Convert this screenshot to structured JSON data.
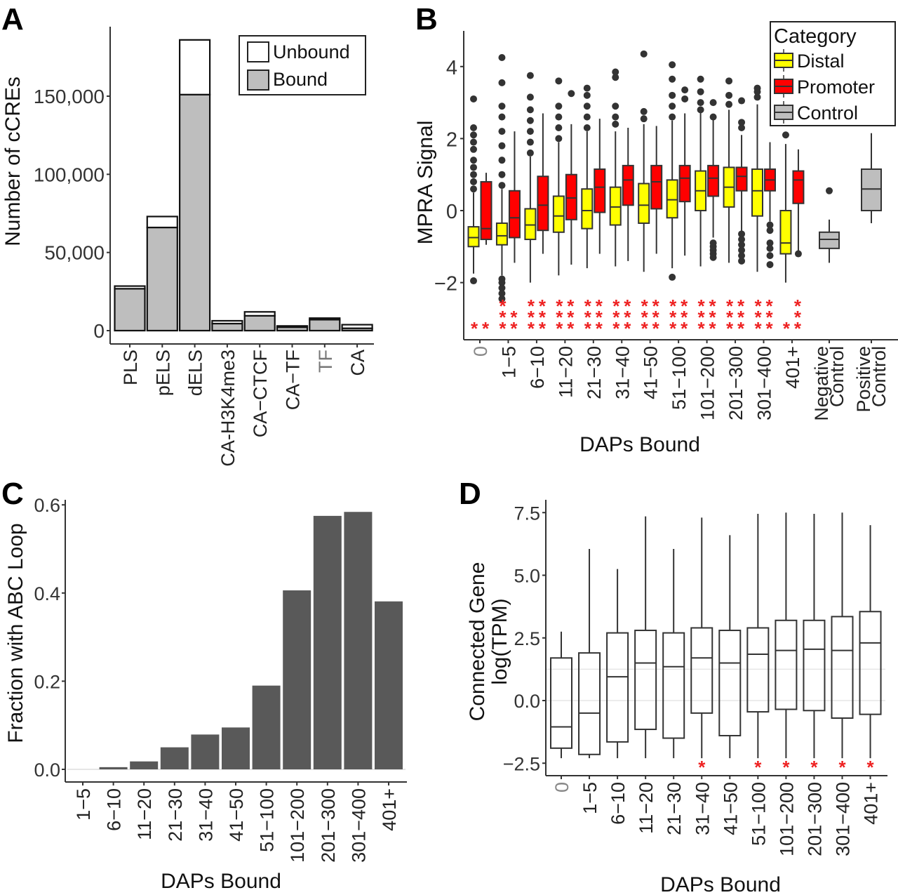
{
  "chart_data": [
    {
      "panel": "A",
      "type": "bar",
      "stacked": true,
      "panel_label": "A",
      "title": "",
      "xlabel": "",
      "ylabel": "Number of cCREs",
      "ylim": [
        0,
        190000
      ],
      "yticks": [
        0,
        50000,
        100000,
        150000
      ],
      "ytick_labels": [
        "0",
        "50,000",
        "100,000",
        "150,000"
      ],
      "categories": [
        "PLS",
        "pELS",
        "dELS",
        "CA-H3K4me3",
        "CA−CTCF",
        "CA−TF",
        "TF",
        "CA"
      ],
      "series": [
        {
          "name": "Bound",
          "color": "#bebebe",
          "values": [
            26800,
            66000,
            151000,
            4500,
            9500,
            2200,
            7000,
            1500
          ]
        },
        {
          "name": "Unbound",
          "color": "#ffffff",
          "values": [
            1700,
            7000,
            35000,
            1800,
            2500,
            800,
            1000,
            2300
          ]
        }
      ],
      "legend": {
        "position": "top-right",
        "entries": [
          "Unbound",
          "Bound"
        ]
      },
      "grid": false
    },
    {
      "panel": "B",
      "type": "box",
      "panel_label": "B",
      "xlabel": "DAPs Bound",
      "ylabel": "MPRA Signal",
      "ylim": [
        -3.4,
        5.0
      ],
      "yticks": [
        -2,
        0,
        2,
        4
      ],
      "ytick_labels": [
        "−2",
        "0",
        "2",
        "4"
      ],
      "categories": [
        "0",
        "1−5",
        "6−10",
        "11−20",
        "21−30",
        "31−40",
        "41−50",
        "51−100",
        "101−200",
        "201−300",
        "301−400",
        "401+",
        "Negative\nControl",
        "Positive\nControl"
      ],
      "legend": {
        "title": "Category",
        "position": "top-right",
        "entries": [
          {
            "name": "Distal",
            "color": "#ffff00"
          },
          {
            "name": "Promoter",
            "color": "#ff0000"
          },
          {
            "name": "Control",
            "color": "#bebebe"
          }
        ]
      },
      "series": [
        {
          "name": "Distal",
          "color": "#ffff00",
          "boxes": [
            {
              "cat": 0,
              "low": -1.75,
              "q1": -1.0,
              "median": -0.75,
              "q3": -0.45,
              "high": 0.5,
              "outliers_high": [
                0.6,
                0.8,
                1.0,
                1.2,
                1.4,
                1.7,
                1.9,
                2.1,
                2.3,
                3.1
              ],
              "outliers_low": [
                -1.95
              ]
            },
            {
              "cat": 1,
              "low": -1.8,
              "q1": -0.95,
              "median": -0.7,
              "q3": -0.35,
              "high": 0.6,
              "outliers_high": [
                0.7,
                1.0,
                1.4,
                1.8,
                2.2,
                2.6,
                2.9,
                3.55,
                4.25
              ],
              "outliers_low": [
                -1.9,
                -2.0,
                -2.15,
                -2.3,
                -2.45
              ]
            },
            {
              "cat": 2,
              "low": -2.0,
              "q1": -0.8,
              "median": -0.4,
              "q3": 0.05,
              "high": 1.5,
              "outliers_high": [
                1.6,
                1.9,
                2.2,
                2.5,
                2.8,
                3.15,
                3.75
              ],
              "outliers_low": []
            },
            {
              "cat": 3,
              "low": -1.8,
              "q1": -0.6,
              "median": -0.15,
              "q3": 0.4,
              "high": 1.9,
              "outliers_high": [
                2.0,
                2.3,
                2.6,
                2.9,
                3.6
              ],
              "outliers_low": []
            },
            {
              "cat": 4,
              "low": -1.6,
              "q1": -0.5,
              "median": 0.0,
              "q3": 0.6,
              "high": 2.2,
              "outliers_high": [
                2.3,
                2.6,
                2.9,
                3.2,
                3.4
              ],
              "outliers_low": []
            },
            {
              "cat": 5,
              "low": -1.55,
              "q1": -0.4,
              "median": 0.1,
              "q3": 0.65,
              "high": 2.2,
              "outliers_high": [
                2.4,
                2.6,
                2.9,
                3.7,
                3.85
              ],
              "outliers_low": []
            },
            {
              "cat": 6,
              "low": -1.7,
              "q1": -0.35,
              "median": 0.15,
              "q3": 0.75,
              "high": 2.4,
              "outliers_high": [
                2.55,
                2.75,
                4.35
              ],
              "outliers_low": []
            },
            {
              "cat": 7,
              "low": -1.6,
              "q1": -0.2,
              "median": 0.3,
              "q3": 0.85,
              "high": 2.5,
              "outliers_high": [
                2.6,
                2.9,
                3.2,
                3.65,
                4.05
              ],
              "outliers_low": [
                -1.85
              ]
            },
            {
              "cat": 8,
              "low": -1.55,
              "q1": 0.0,
              "median": 0.55,
              "q3": 1.1,
              "high": 2.75,
              "outliers_high": [
                2.8,
                3.0,
                3.3,
                3.65
              ],
              "outliers_low": []
            },
            {
              "cat": 9,
              "low": -1.45,
              "q1": 0.1,
              "median": 0.65,
              "q3": 1.2,
              "high": 2.8,
              "outliers_high": [
                2.95,
                3.2,
                3.6
              ],
              "outliers_low": []
            },
            {
              "cat": 10,
              "low": -1.7,
              "q1": -0.15,
              "median": 0.55,
              "q3": 1.15,
              "high": 2.95,
              "outliers_high": [
                3.15,
                3.3,
                3.4
              ],
              "outliers_low": []
            },
            {
              "cat": 11,
              "low": -2.0,
              "q1": -1.2,
              "median": -0.9,
              "q3": 0.0,
              "high": 1.85,
              "outliers_high": [
                2.1
              ],
              "outliers_low": []
            }
          ]
        },
        {
          "name": "Promoter",
          "color": "#ff0000",
          "boxes": [
            {
              "cat": 0,
              "low": -0.95,
              "q1": -0.8,
              "median": -0.5,
              "q3": 0.8,
              "high": 1.05,
              "outliers_high": [],
              "outliers_low": []
            },
            {
              "cat": 1,
              "low": -1.45,
              "q1": -0.75,
              "median": -0.2,
              "q3": 0.55,
              "high": 2.2,
              "outliers_high": [],
              "outliers_low": []
            },
            {
              "cat": 2,
              "low": -1.2,
              "q1": -0.55,
              "median": 0.15,
              "q3": 0.95,
              "high": 2.7,
              "outliers_high": [],
              "outliers_low": []
            },
            {
              "cat": 3,
              "low": -1.5,
              "q1": -0.25,
              "median": 0.35,
              "q3": 1.0,
              "high": 2.4,
              "outliers_high": [
                3.25
              ],
              "outliers_low": []
            },
            {
              "cat": 4,
              "low": -1.2,
              "q1": -0.05,
              "median": 0.65,
              "q3": 1.15,
              "high": 2.55,
              "outliers_high": [],
              "outliers_low": []
            },
            {
              "cat": 5,
              "low": -1.4,
              "q1": 0.15,
              "median": 0.85,
              "q3": 1.25,
              "high": 2.3,
              "outliers_high": [],
              "outliers_low": []
            },
            {
              "cat": 6,
              "low": -1.2,
              "q1": 0.05,
              "median": 0.8,
              "q3": 1.25,
              "high": 2.35,
              "outliers_high": [],
              "outliers_low": []
            },
            {
              "cat": 7,
              "low": -1.25,
              "q1": 0.25,
              "median": 0.9,
              "q3": 1.25,
              "high": 2.7,
              "outliers_high": [
                3.1,
                3.35
              ],
              "outliers_low": []
            },
            {
              "cat": 8,
              "low": -0.75,
              "q1": 0.4,
              "median": 0.9,
              "q3": 1.25,
              "high": 2.55,
              "outliers_high": [
                2.6,
                3.0
              ],
              "outliers_low": [
                -0.9,
                -1.0,
                -1.1,
                -1.2,
                -1.3
              ]
            },
            {
              "cat": 9,
              "low": -0.6,
              "q1": 0.55,
              "median": 0.95,
              "q3": 1.2,
              "high": 2.1,
              "outliers_high": [
                2.3,
                2.45,
                3.05
              ],
              "outliers_low": [
                -0.65,
                -0.8,
                -0.95,
                -1.1,
                -1.25,
                -1.4
              ]
            },
            {
              "cat": 10,
              "low": -0.3,
              "q1": 0.55,
              "median": 0.85,
              "q3": 1.15,
              "high": 1.9,
              "outliers_high": [],
              "outliers_low": [
                -0.4,
                -0.55,
                -0.9,
                -1.05,
                -1.25,
                -1.5
              ]
            },
            {
              "cat": 11,
              "low": -1.15,
              "q1": 0.2,
              "median": 0.85,
              "q3": 1.1,
              "high": 1.7,
              "outliers_high": [],
              "outliers_low": [
                -1.2
              ]
            }
          ]
        },
        {
          "name": "Control",
          "color": "#bebebe",
          "boxes": [
            {
              "cat": 12,
              "low": -1.45,
              "q1": -1.05,
              "median": -0.8,
              "q3": -0.6,
              "high": -0.25,
              "outliers_high": [
                0.55
              ],
              "outliers_low": []
            },
            {
              "cat": 13,
              "low": -0.35,
              "q1": 0.0,
              "median": 0.6,
              "q3": 1.15,
              "high": 2.15,
              "outliers_high": [],
              "outliers_low": []
            }
          ]
        }
      ],
      "significance": {
        "symbol": "*",
        "color": "#ee2222",
        "distal": [
          "*",
          "***",
          "***",
          "***",
          "***",
          "***",
          "***",
          "***",
          "***",
          "***",
          "***",
          "*"
        ],
        "promoter": [
          "*",
          "**",
          "***",
          "***",
          "***",
          "***",
          "***",
          "***",
          "***",
          "***",
          "***",
          "***"
        ]
      },
      "grid": false
    },
    {
      "panel": "C",
      "type": "bar",
      "panel_label": "C",
      "xlabel": "DAPs Bound",
      "ylabel": "Fraction with ABC Loop",
      "ylim": [
        -0.03,
        0.61
      ],
      "yticks": [
        0.0,
        0.2,
        0.4,
        0.6
      ],
      "ytick_labels": [
        "0.0",
        "0.2",
        "0.4",
        "0.6"
      ],
      "categories": [
        "1−5",
        "6−10",
        "11−20",
        "21−30",
        "31−40",
        "41−50",
        "51−100",
        "101−200",
        "201−300",
        "301−400",
        "401+"
      ],
      "values": [
        0.0,
        0.005,
        0.018,
        0.05,
        0.079,
        0.095,
        0.19,
        0.406,
        0.575,
        0.584,
        0.381
      ],
      "color": "#595959",
      "grid": false
    },
    {
      "panel": "D",
      "type": "box",
      "panel_label": "D",
      "xlabel": "DAPs Bound",
      "ylabel": "Connected Gene\nlog(TPM)",
      "ylim": [
        -3.0,
        8.0
      ],
      "yticks": [
        -2.5,
        0.0,
        2.5,
        5.0,
        7.5
      ],
      "ytick_labels": [
        "−2.5",
        "0.0",
        "2.5",
        "5.0",
        "7.5"
      ],
      "categories": [
        "0",
        "1−5",
        "6−10",
        "11−20",
        "21−30",
        "31−40",
        "41−50",
        "51−100",
        "101−200",
        "201−300",
        "301−400",
        "401+"
      ],
      "boxes": [
        {
          "low": -2.3,
          "q1": -1.9,
          "median": -1.05,
          "q3": 1.7,
          "high": 2.75
        },
        {
          "low": -2.3,
          "q1": -2.15,
          "median": -0.5,
          "q3": 1.9,
          "high": 6.05
        },
        {
          "low": -2.3,
          "q1": -1.65,
          "median": 0.95,
          "q3": 2.7,
          "high": 5.25
        },
        {
          "low": -2.3,
          "q1": -1.15,
          "median": 1.5,
          "q3": 2.8,
          "high": 7.35
        },
        {
          "low": -2.3,
          "q1": -1.5,
          "median": 1.35,
          "q3": 2.7,
          "high": 6.05
        },
        {
          "low": -2.3,
          "q1": -0.5,
          "median": 1.7,
          "q3": 2.9,
          "high": 7.3
        },
        {
          "low": -2.3,
          "q1": -1.4,
          "median": 1.5,
          "q3": 2.8,
          "high": 6.6
        },
        {
          "low": -2.3,
          "q1": -0.45,
          "median": 1.85,
          "q3": 2.9,
          "high": 7.45
        },
        {
          "low": -2.3,
          "q1": -0.35,
          "median": 2.0,
          "q3": 3.2,
          "high": 7.5
        },
        {
          "low": -2.3,
          "q1": -0.4,
          "median": 2.05,
          "q3": 3.2,
          "high": 7.45
        },
        {
          "low": -2.3,
          "q1": -0.7,
          "median": 2.0,
          "q3": 3.35,
          "high": 7.5
        },
        {
          "low": -2.3,
          "q1": -0.55,
          "median": 2.3,
          "q3": 3.55,
          "high": 7.0
        }
      ],
      "gridlines_y": [
        0.0,
        1.25
      ],
      "significance": {
        "symbol": "*",
        "color": "#ee2222",
        "flags": [
          false,
          false,
          false,
          false,
          false,
          true,
          false,
          true,
          true,
          true,
          true,
          true
        ]
      },
      "grid": true
    }
  ]
}
